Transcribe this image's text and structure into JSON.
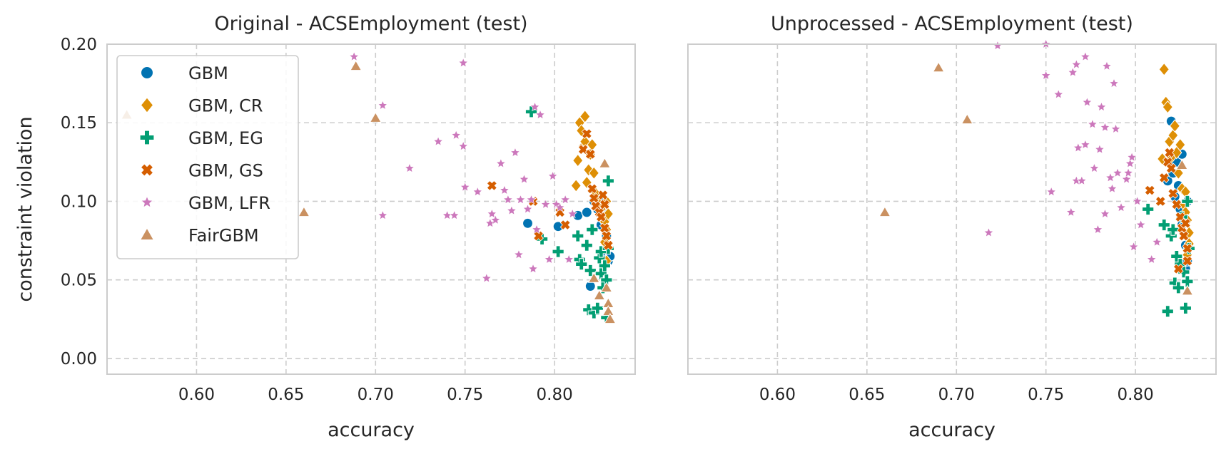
{
  "chart_data": [
    {
      "type": "scatter",
      "title": "Original - ACSEmployment (test)",
      "xlabel": "accuracy",
      "ylabel": "constraint violation",
      "xlim": [
        0.55,
        0.845
      ],
      "ylim": [
        -0.01,
        0.2
      ],
      "xticks": [
        "0.60",
        "0.65",
        "0.70",
        "0.75",
        "0.80"
      ],
      "yticks": [
        "0.00",
        "0.05",
        "0.10",
        "0.15",
        "0.20"
      ],
      "grid": true,
      "legend": "upper left",
      "series": [
        {
          "name": "GBM",
          "points": [
            [
              0.785,
              0.086
            ],
            [
              0.802,
              0.084
            ],
            [
              0.813,
              0.091
            ],
            [
              0.818,
              0.093
            ],
            [
              0.82,
              0.046
            ],
            [
              0.822,
              0.1
            ],
            [
              0.823,
              0.104
            ],
            [
              0.824,
              0.095
            ],
            [
              0.825,
              0.1
            ],
            [
              0.826,
              0.085
            ],
            [
              0.827,
              0.093
            ],
            [
              0.828,
              0.088
            ],
            [
              0.829,
              0.078
            ],
            [
              0.829,
              0.066
            ],
            [
              0.83,
              0.062
            ],
            [
              0.831,
              0.065
            ]
          ]
        },
        {
          "name": "GBM, CR",
          "points": [
            [
              0.812,
              0.11
            ],
            [
              0.813,
              0.126
            ],
            [
              0.814,
              0.15
            ],
            [
              0.815,
              0.145
            ],
            [
              0.816,
              0.135
            ],
            [
              0.817,
              0.154
            ],
            [
              0.817,
              0.138
            ],
            [
              0.818,
              0.112
            ],
            [
              0.819,
              0.12
            ],
            [
              0.82,
              0.13
            ],
            [
              0.821,
              0.136
            ],
            [
              0.822,
              0.118
            ],
            [
              0.823,
              0.105
            ],
            [
              0.824,
              0.1
            ],
            [
              0.825,
              0.098
            ],
            [
              0.826,
              0.095
            ],
            [
              0.827,
              0.09
            ],
            [
              0.828,
              0.087
            ],
            [
              0.829,
              0.082
            ],
            [
              0.83,
              0.092
            ],
            [
              0.829,
              0.1
            ],
            [
              0.828,
              0.074
            ],
            [
              0.829,
              0.062
            ]
          ]
        },
        {
          "name": "GBM, EG",
          "points": [
            [
              0.787,
              0.157
            ],
            [
              0.793,
              0.076
            ],
            [
              0.802,
              0.068
            ],
            [
              0.813,
              0.078
            ],
            [
              0.814,
              0.063
            ],
            [
              0.815,
              0.06
            ],
            [
              0.818,
              0.072
            ],
            [
              0.819,
              0.031
            ],
            [
              0.82,
              0.056
            ],
            [
              0.821,
              0.082
            ],
            [
              0.822,
              0.029
            ],
            [
              0.824,
              0.032
            ],
            [
              0.825,
              0.064
            ],
            [
              0.826,
              0.068
            ],
            [
              0.826,
              0.054
            ],
            [
              0.827,
              0.045
            ],
            [
              0.828,
              0.059
            ],
            [
              0.829,
              0.05
            ],
            [
              0.829,
              0.026
            ],
            [
              0.83,
              0.113
            ],
            [
              0.83,
              0.07
            ]
          ]
        },
        {
          "name": "GBM, GS",
          "points": [
            [
              0.765,
              0.11
            ],
            [
              0.788,
              0.1
            ],
            [
              0.791,
              0.078
            ],
            [
              0.803,
              0.093
            ],
            [
              0.806,
              0.085
            ],
            [
              0.816,
              0.133
            ],
            [
              0.818,
              0.143
            ],
            [
              0.82,
              0.13
            ],
            [
              0.821,
              0.108
            ],
            [
              0.822,
              0.102
            ],
            [
              0.823,
              0.097
            ],
            [
              0.825,
              0.093
            ],
            [
              0.826,
              0.09
            ],
            [
              0.828,
              0.083
            ],
            [
              0.829,
              0.078
            ],
            [
              0.83,
              0.072
            ],
            [
              0.828,
              0.098
            ],
            [
              0.827,
              0.104
            ]
          ]
        },
        {
          "name": "GBM, LFR",
          "points": [
            [
              0.688,
              0.192
            ],
            [
              0.704,
              0.161
            ],
            [
              0.704,
              0.091
            ],
            [
              0.719,
              0.121
            ],
            [
              0.735,
              0.138
            ],
            [
              0.74,
              0.091
            ],
            [
              0.744,
              0.091
            ],
            [
              0.745,
              0.142
            ],
            [
              0.749,
              0.135
            ],
            [
              0.749,
              0.188
            ],
            [
              0.75,
              0.109
            ],
            [
              0.757,
              0.106
            ],
            [
              0.762,
              0.051
            ],
            [
              0.764,
              0.086
            ],
            [
              0.765,
              0.092
            ],
            [
              0.767,
              0.088
            ],
            [
              0.77,
              0.124
            ],
            [
              0.772,
              0.107
            ],
            [
              0.774,
              0.101
            ],
            [
              0.776,
              0.094
            ],
            [
              0.778,
              0.131
            ],
            [
              0.78,
              0.066
            ],
            [
              0.781,
              0.101
            ],
            [
              0.783,
              0.114
            ],
            [
              0.785,
              0.095
            ],
            [
              0.787,
              0.101
            ],
            [
              0.789,
              0.16
            ],
            [
              0.788,
              0.057
            ],
            [
              0.79,
              0.082
            ],
            [
              0.792,
              0.155
            ],
            [
              0.795,
              0.098
            ],
            [
              0.797,
              0.063
            ],
            [
              0.799,
              0.116
            ],
            [
              0.801,
              0.098
            ],
            [
              0.803,
              0.096
            ],
            [
              0.806,
              0.101
            ],
            [
              0.808,
              0.063
            ],
            [
              0.81,
              0.092
            ]
          ]
        },
        {
          "name": "FairGBM",
          "points": [
            [
              0.561,
              0.155
            ],
            [
              0.66,
              0.093
            ],
            [
              0.689,
              0.186
            ],
            [
              0.7,
              0.153
            ],
            [
              0.822,
              0.051
            ],
            [
              0.825,
              0.04
            ],
            [
              0.828,
              0.124
            ],
            [
              0.829,
              0.045
            ],
            [
              0.83,
              0.035
            ],
            [
              0.83,
              0.03
            ],
            [
              0.831,
              0.025
            ]
          ]
        }
      ]
    },
    {
      "type": "scatter",
      "title": "Unprocessed - ACSEmployment (test)",
      "xlabel": "accuracy",
      "ylabel": "",
      "xlim": [
        0.55,
        0.845
      ],
      "ylim": [
        -0.01,
        0.2
      ],
      "xticks": [
        "0.60",
        "0.65",
        "0.70",
        "0.75",
        "0.80"
      ],
      "grid": true,
      "series": [
        {
          "name": "GBM",
          "points": [
            [
              0.818,
              0.113
            ],
            [
              0.82,
              0.151
            ],
            [
              0.821,
              0.118
            ],
            [
              0.822,
              0.103
            ],
            [
              0.823,
              0.125
            ],
            [
              0.824,
              0.11
            ],
            [
              0.825,
              0.095
            ],
            [
              0.826,
              0.13
            ],
            [
              0.826,
              0.085
            ],
            [
              0.827,
              0.09
            ],
            [
              0.828,
              0.072
            ],
            [
              0.828,
              0.057
            ],
            [
              0.829,
              0.062
            ],
            [
              0.829,
              0.1
            ]
          ]
        },
        {
          "name": "GBM, CR",
          "points": [
            [
              0.815,
              0.127
            ],
            [
              0.816,
              0.184
            ],
            [
              0.817,
              0.163
            ],
            [
              0.818,
              0.16
            ],
            [
              0.819,
              0.138
            ],
            [
              0.82,
              0.128
            ],
            [
              0.821,
              0.142
            ],
            [
              0.822,
              0.148
            ],
            [
              0.823,
              0.131
            ],
            [
              0.824,
              0.118
            ],
            [
              0.825,
              0.136
            ],
            [
              0.826,
              0.108
            ],
            [
              0.827,
              0.098
            ],
            [
              0.828,
              0.093
            ],
            [
              0.829,
              0.088
            ],
            [
              0.83,
              0.08
            ],
            [
              0.83,
              0.073
            ],
            [
              0.829,
              0.066
            ],
            [
              0.828,
              0.106
            ]
          ]
        },
        {
          "name": "GBM, EG",
          "points": [
            [
              0.807,
              0.095
            ],
            [
              0.816,
              0.085
            ],
            [
              0.818,
              0.03
            ],
            [
              0.82,
              0.078
            ],
            [
              0.821,
              0.082
            ],
            [
              0.822,
              0.048
            ],
            [
              0.823,
              0.065
            ],
            [
              0.824,
              0.045
            ],
            [
              0.825,
              0.06
            ],
            [
              0.826,
              0.09
            ],
            [
              0.827,
              0.055
            ],
            [
              0.828,
              0.032
            ],
            [
              0.829,
              0.049
            ],
            [
              0.83,
              0.07
            ],
            [
              0.829,
              0.1
            ]
          ]
        },
        {
          "name": "GBM, GS",
          "points": [
            [
              0.808,
              0.107
            ],
            [
              0.814,
              0.1
            ],
            [
              0.816,
              0.115
            ],
            [
              0.818,
              0.125
            ],
            [
              0.819,
              0.131
            ],
            [
              0.82,
              0.121
            ],
            [
              0.821,
              0.105
            ],
            [
              0.823,
              0.098
            ],
            [
              0.824,
              0.057
            ],
            [
              0.825,
              0.09
            ],
            [
              0.826,
              0.083
            ],
            [
              0.827,
              0.078
            ],
            [
              0.828,
              0.086
            ],
            [
              0.829,
              0.07
            ],
            [
              0.829,
              0.062
            ]
          ]
        },
        {
          "name": "GBM, LFR",
          "points": [
            [
              0.718,
              0.08
            ],
            [
              0.723,
              0.199
            ],
            [
              0.75,
              0.2
            ],
            [
              0.75,
              0.18
            ],
            [
              0.753,
              0.106
            ],
            [
              0.757,
              0.168
            ],
            [
              0.764,
              0.093
            ],
            [
              0.765,
              0.182
            ],
            [
              0.767,
              0.187
            ],
            [
              0.767,
              0.113
            ],
            [
              0.768,
              0.134
            ],
            [
              0.77,
              0.113
            ],
            [
              0.772,
              0.192
            ],
            [
              0.772,
              0.136
            ],
            [
              0.773,
              0.163
            ],
            [
              0.776,
              0.149
            ],
            [
              0.777,
              0.121
            ],
            [
              0.779,
              0.082
            ],
            [
              0.78,
              0.133
            ],
            [
              0.781,
              0.16
            ],
            [
              0.783,
              0.147
            ],
            [
              0.783,
              0.092
            ],
            [
              0.784,
              0.186
            ],
            [
              0.786,
              0.115
            ],
            [
              0.787,
              0.108
            ],
            [
              0.788,
              0.175
            ],
            [
              0.789,
              0.146
            ],
            [
              0.79,
              0.118
            ],
            [
              0.792,
              0.096
            ],
            [
              0.795,
              0.114
            ],
            [
              0.796,
              0.118
            ],
            [
              0.797,
              0.124
            ],
            [
              0.798,
              0.128
            ],
            [
              0.799,
              0.071
            ],
            [
              0.801,
              0.1
            ],
            [
              0.803,
              0.085
            ],
            [
              0.809,
              0.063
            ],
            [
              0.812,
              0.074
            ]
          ]
        },
        {
          "name": "FairGBM",
          "points": [
            [
              0.66,
              0.093
            ],
            [
              0.69,
              0.185
            ],
            [
              0.706,
              0.152
            ],
            [
              0.826,
              0.123
            ],
            [
              0.829,
              0.043
            ]
          ]
        }
      ]
    }
  ],
  "colors": {
    "GBM": "#0173b2",
    "GBM, CR": "#de8f05",
    "GBM, EG": "#029e73",
    "GBM, GS": "#d55e00",
    "GBM, LFR": "#cc78bc",
    "FairGBM": "#ca9161",
    "frame": "#cccccc",
    "grid": "#cccccc"
  },
  "markers": {
    "GBM": "circle",
    "GBM, CR": "diamond",
    "GBM, EG": "plus",
    "GBM, GS": "x",
    "GBM, LFR": "star",
    "FairGBM": "triangle"
  }
}
